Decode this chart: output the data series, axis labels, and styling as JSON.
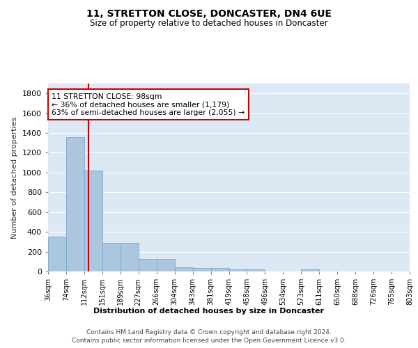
{
  "title": "11, STRETTON CLOSE, DONCASTER, DN4 6UE",
  "subtitle": "Size of property relative to detached houses in Doncaster",
  "xlabel": "Distribution of detached houses by size in Doncaster",
  "ylabel": "Number of detached properties",
  "bar_values": [
    355,
    1355,
    1020,
    290,
    290,
    130,
    130,
    40,
    35,
    35,
    20,
    20,
    0,
    0,
    20,
    0,
    0,
    0,
    0,
    0
  ],
  "bar_labels": [
    "36sqm",
    "74sqm",
    "112sqm",
    "151sqm",
    "189sqm",
    "227sqm",
    "266sqm",
    "304sqm",
    "343sqm",
    "381sqm",
    "419sqm",
    "458sqm",
    "496sqm",
    "534sqm",
    "573sqm",
    "611sqm",
    "650sqm",
    "688sqm",
    "726sqm",
    "765sqm",
    "803sqm"
  ],
  "bar_color": "#adc6e0",
  "bar_edge_color": "#7aaac8",
  "property_line_x": 1.72,
  "property_line_color": "#cc0000",
  "annotation_text": "11 STRETTON CLOSE: 98sqm\n← 36% of detached houses are smaller (1,179)\n63% of semi-detached houses are larger (2,055) →",
  "ylim": [
    0,
    1900
  ],
  "yticks": [
    0,
    200,
    400,
    600,
    800,
    1000,
    1200,
    1400,
    1600,
    1800
  ],
  "background_color": "#ffffff",
  "plot_bg_color": "#dde8f5",
  "grid_color": "#ffffff",
  "footnote_line1": "Contains HM Land Registry data © Crown copyright and database right 2024.",
  "footnote_line2": "Contains public sector information licensed under the Open Government Licence v3.0."
}
